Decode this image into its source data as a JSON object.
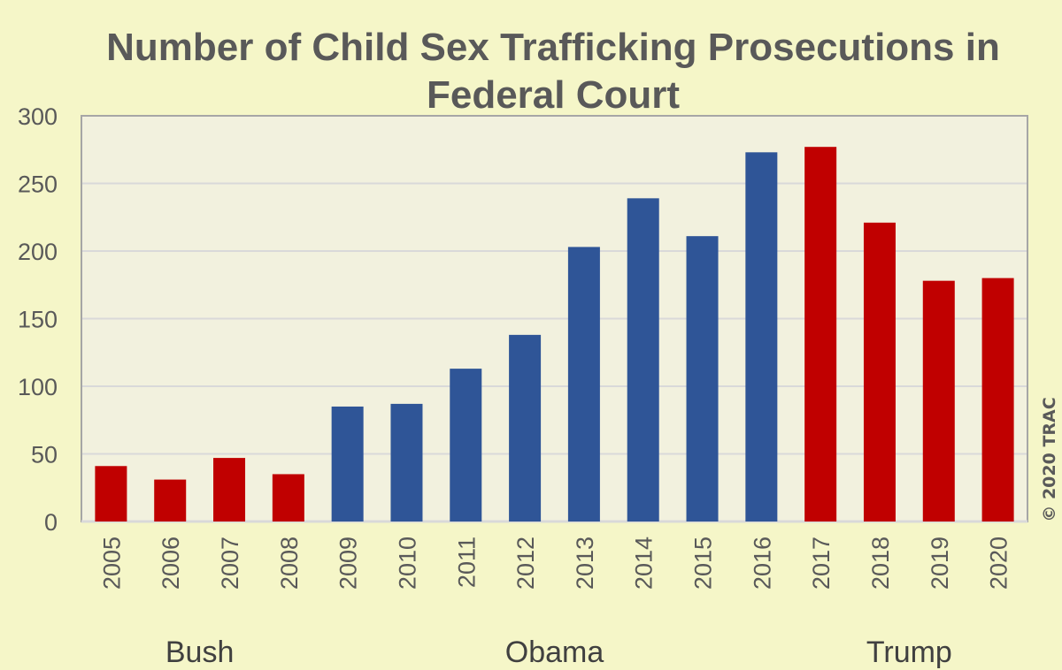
{
  "chart_data": {
    "type": "bar",
    "title": [
      "Number of Child Sex Trafficking Prosecutions in",
      "Federal Court"
    ],
    "categories": [
      "2005",
      "2006",
      "2007",
      "2008",
      "2009",
      "2010",
      "2011",
      "2012",
      "2013",
      "2014",
      "2015",
      "2016",
      "2017",
      "2018",
      "2019",
      "2020"
    ],
    "values": [
      41,
      31,
      47,
      35,
      85,
      87,
      113,
      138,
      203,
      239,
      211,
      273,
      277,
      221,
      178,
      180
    ],
    "administration": [
      "Bush",
      "Bush",
      "Bush",
      "Bush",
      "Obama",
      "Obama",
      "Obama",
      "Obama",
      "Obama",
      "Obama",
      "Obama",
      "Obama",
      "Trump",
      "Trump",
      "Trump",
      "Trump"
    ],
    "ylim": [
      0,
      300
    ],
    "yticks": [
      0,
      50,
      100,
      150,
      200,
      250,
      300
    ],
    "grid": true,
    "xlabel": "",
    "ylabel": "",
    "eras": [
      {
        "label": "Bush",
        "from": "2005",
        "to": "2008"
      },
      {
        "label": "Obama",
        "from": "2009",
        "to": "2016"
      },
      {
        "label": "Trump",
        "from": "2017",
        "to": "2020"
      }
    ],
    "colors": {
      "Bush": "#c00000",
      "Obama": "#2f5597",
      "Trump": "#c00000"
    },
    "copyright": "© 2020 TRAC"
  }
}
